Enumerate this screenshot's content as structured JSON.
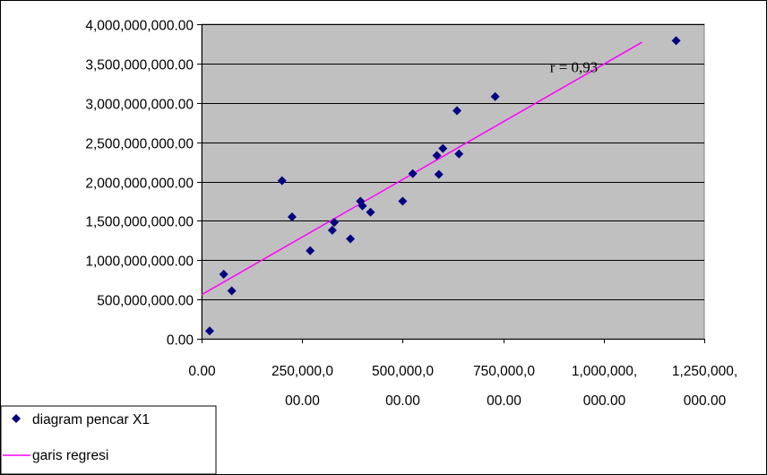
{
  "chart_data": {
    "type": "scatter",
    "title": "",
    "xlabel": "",
    "ylabel": "",
    "xlim": [
      0,
      1250000000
    ],
    "ylim": [
      0,
      4000000000
    ],
    "x_ticks": [
      {
        "value": 0,
        "lines": [
          "0.00"
        ]
      },
      {
        "value": 250000000,
        "lines": [
          "250,000,0",
          "00.00"
        ]
      },
      {
        "value": 500000000,
        "lines": [
          "500,000,0",
          "00.00"
        ]
      },
      {
        "value": 750000000,
        "lines": [
          "750,000,0",
          "00.00"
        ]
      },
      {
        "value": 1000000000,
        "lines": [
          "1,000,000,",
          "000.00"
        ]
      },
      {
        "value": 1250000000,
        "lines": [
          "1,250,000,",
          "000.00"
        ]
      }
    ],
    "y_ticks": [
      {
        "value": 0,
        "label": "0.00"
      },
      {
        "value": 500000000,
        "label": "500,000,000.00"
      },
      {
        "value": 1000000000,
        "label": "1,000,000,000.00"
      },
      {
        "value": 1500000000,
        "label": "1,500,000,000.00"
      },
      {
        "value": 2000000000,
        "label": "2,000,000,000.00"
      },
      {
        "value": 2500000000,
        "label": "2,500,000,000.00"
      },
      {
        "value": 3000000000,
        "label": "3,000,000,000.00"
      },
      {
        "value": 3500000000,
        "label": "3,500,000,000.00"
      },
      {
        "value": 4000000000,
        "label": "4,000,000,000.00"
      }
    ],
    "grid": "horizontal",
    "plot_background": "#c0c0c0",
    "series": [
      {
        "name": "diagram pencar X1",
        "kind": "scatter",
        "marker": "diamond",
        "color": "#000080",
        "points": [
          [
            20000000,
            100000000
          ],
          [
            55000000,
            820000000
          ],
          [
            75000000,
            610000000
          ],
          [
            200000000,
            2010000000
          ],
          [
            225000000,
            1550000000
          ],
          [
            270000000,
            1120000000
          ],
          [
            325000000,
            1380000000
          ],
          [
            330000000,
            1480000000
          ],
          [
            370000000,
            1270000000
          ],
          [
            395000000,
            1750000000
          ],
          [
            400000000,
            1690000000
          ],
          [
            420000000,
            1610000000
          ],
          [
            500000000,
            1750000000
          ],
          [
            525000000,
            2100000000
          ],
          [
            585000000,
            2330000000
          ],
          [
            590000000,
            2090000000
          ],
          [
            600000000,
            2420000000
          ],
          [
            635000000,
            2900000000
          ],
          [
            640000000,
            2350000000
          ],
          [
            730000000,
            3080000000
          ],
          [
            1180000000,
            3790000000
          ]
        ]
      },
      {
        "name": "garis regresi",
        "kind": "line",
        "color": "#ff00ff",
        "points": [
          [
            0,
            560000000
          ],
          [
            1095000000,
            3770000000
          ]
        ]
      }
    ],
    "annotations": [
      {
        "text": "r = 0,93",
        "x": 1000000000,
        "y": 3550000000
      }
    ],
    "legend": {
      "placement": "bottom-left",
      "entries": [
        "diagram pencar X1",
        "garis regresi"
      ]
    }
  }
}
